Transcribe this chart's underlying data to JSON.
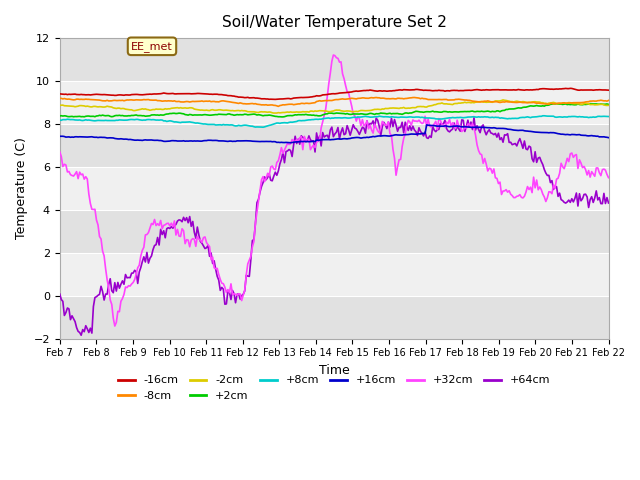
{
  "title": "Soil/Water Temperature Set 2",
  "xlabel": "Time",
  "ylabel": "Temperature (C)",
  "ylim": [
    -2,
    12
  ],
  "yticks": [
    -2,
    0,
    2,
    4,
    6,
    8,
    10,
    12
  ],
  "xtick_labels": [
    "Feb 7",
    "Feb 8",
    "Feb 9",
    "Feb 10",
    "Feb 11",
    "Feb 12",
    "Feb 13",
    "Feb 14",
    "Feb 15",
    "Feb 16",
    "Feb 17",
    "Feb 18",
    "Feb 19",
    "Feb 20",
    "Feb 21",
    "Feb 22"
  ],
  "annotation_text": "EE_met",
  "series_colors": {
    "-16cm": "#cc0000",
    "-8cm": "#ff8800",
    "-2cm": "#ddcc00",
    "+2cm": "#00cc00",
    "+8cm": "#00cccc",
    "+16cm": "#0000cc",
    "+32cm": "#ff44ff",
    "+64cm": "#9900cc"
  },
  "background_color": "#ffffff",
  "n_points": 360
}
